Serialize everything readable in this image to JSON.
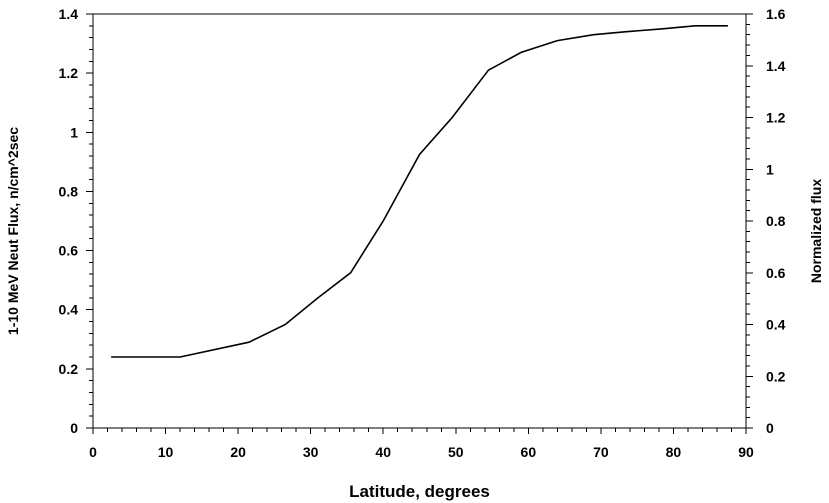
{
  "chart_data": {
    "type": "line",
    "title": "",
    "xlabel": "Latitude, degrees",
    "ylabel": "1-10 MeV Neut Flux, n/cm^2sec",
    "y2label": "Normalized flux",
    "xlim": [
      0,
      90
    ],
    "ylim": [
      0,
      1.4
    ],
    "y2lim": [
      0,
      1.6
    ],
    "x_ticks": [
      "0",
      "10",
      "20",
      "30",
      "40",
      "50",
      "60",
      "70",
      "80",
      "90"
    ],
    "y_ticks": [
      "0",
      "0.2",
      "0.4",
      "0.6",
      "0.8",
      "1",
      "1.2",
      "1.4"
    ],
    "y2_ticks": [
      "0",
      "0.2",
      "0.4",
      "0.6",
      "0.8",
      "1",
      "1.2",
      "1.4",
      "1.6"
    ],
    "grid": false,
    "legend": "none",
    "series": [
      {
        "x": [
          2.5,
          12,
          21.5,
          26.5,
          31,
          35.5,
          40,
          45,
          49.5,
          54.5,
          59,
          64,
          69,
          73.5,
          78.5,
          83,
          87.5
        ],
        "y": [
          0.24,
          0.24,
          0.29,
          0.35,
          0.44,
          0.525,
          0.7,
          0.925,
          1.05,
          1.21,
          1.27,
          1.31,
          1.33,
          1.34,
          1.35,
          1.36,
          1.36
        ]
      }
    ]
  }
}
